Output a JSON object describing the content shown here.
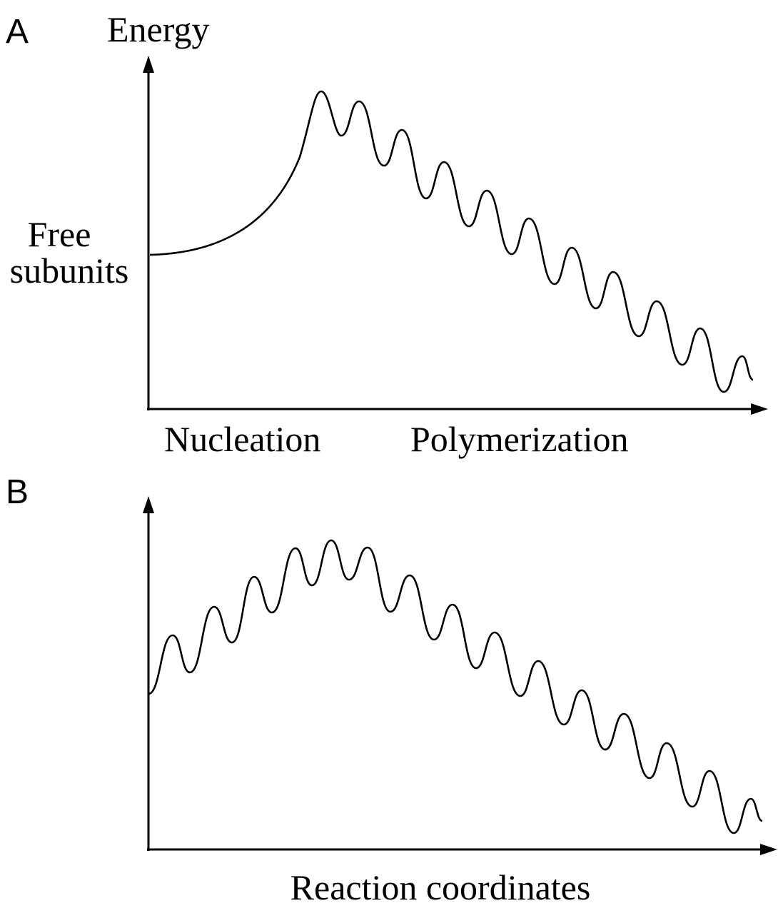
{
  "panel_a": {
    "label": "A",
    "y_axis_label": "Energy",
    "start_label": [
      "Free",
      "subunits"
    ],
    "x_labels": [
      "Nucleation",
      "Polymerization"
    ]
  },
  "panel_b": {
    "label": "B",
    "x_axis_label": "Reaction coordinates"
  }
}
